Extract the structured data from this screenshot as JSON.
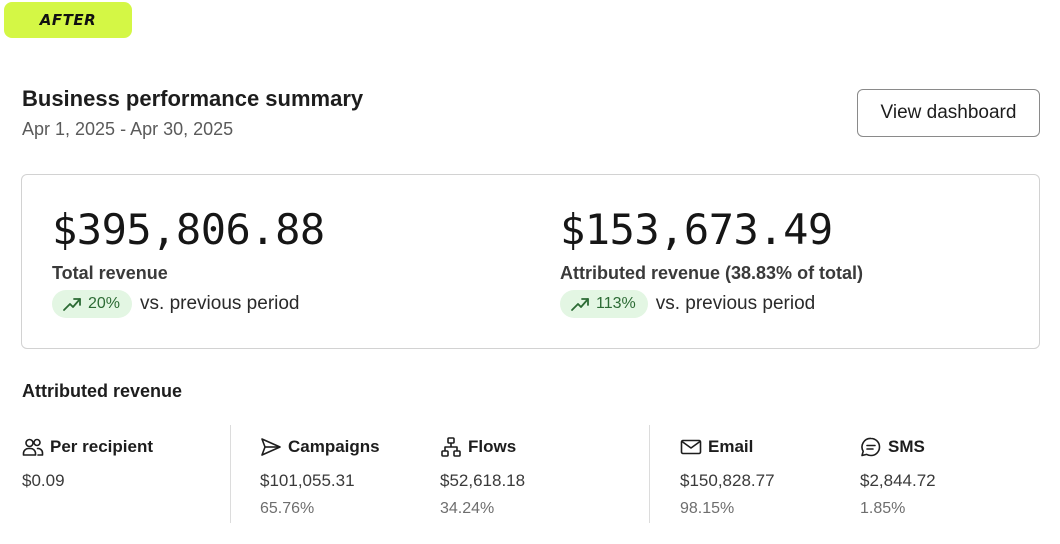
{
  "tag": {
    "label": "AFTER"
  },
  "header": {
    "title": "Business performance summary",
    "date_range": "Apr 1, 2025 - Apr 30, 2025",
    "view_dashboard_label": "View dashboard"
  },
  "summary": {
    "total": {
      "value": "$395,806.88",
      "label": "Total revenue",
      "change": "20%",
      "change_text": "vs. previous period"
    },
    "attributed": {
      "value": "$153,673.49",
      "label": "Attributed revenue (38.83% of total)",
      "change": "113%",
      "change_text": "vs. previous period"
    }
  },
  "attributed_section": {
    "title": "Attributed revenue",
    "per_recipient": {
      "label": "Per recipient",
      "icon": "people-icon",
      "value": "$0.09"
    },
    "campaigns": {
      "label": "Campaigns",
      "icon": "send-icon",
      "value": "$101,055.31",
      "pct": "65.76%"
    },
    "flows": {
      "label": "Flows",
      "icon": "flow-icon",
      "value": "$52,618.18",
      "pct": "34.24%"
    },
    "email": {
      "label": "Email",
      "icon": "mail-icon",
      "value": "$150,828.77",
      "pct": "98.15%"
    },
    "sms": {
      "label": "SMS",
      "icon": "chat-icon",
      "value": "$2,844.72",
      "pct": "1.85%"
    }
  },
  "colors": {
    "tag_bg": "#d4f745",
    "trend_bg": "#e3f6e3",
    "trend_fg": "#2c6b34"
  }
}
